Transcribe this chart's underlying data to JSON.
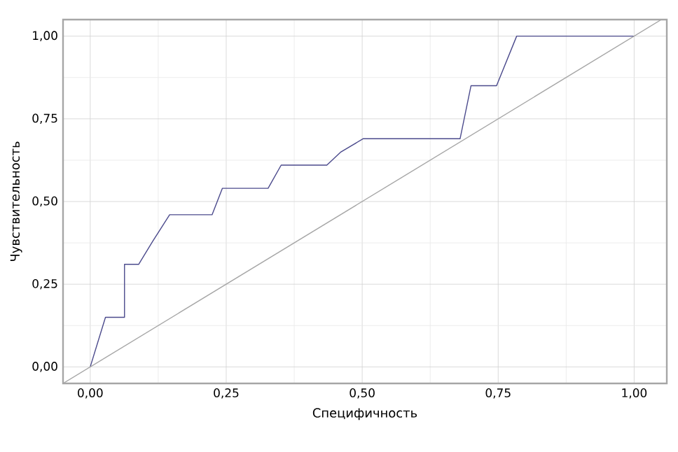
{
  "chart_data": {
    "type": "line",
    "xlabel": "Специфичность",
    "ylabel": "Чувствительность",
    "xlim": [
      -0.05,
      1.06
    ],
    "ylim": [
      -0.05,
      1.05
    ],
    "xticks": [
      {
        "value": 0,
        "label": "0,00"
      },
      {
        "value": 0.25,
        "label": "0,25"
      },
      {
        "value": 0.5,
        "label": "0,50"
      },
      {
        "value": 0.75,
        "label": "0,75"
      },
      {
        "value": 1,
        "label": "1,00"
      }
    ],
    "yticks": [
      {
        "value": 0,
        "label": "0,00"
      },
      {
        "value": 0.25,
        "label": "0,25"
      },
      {
        "value": 0.5,
        "label": "0,50"
      },
      {
        "value": 0.75,
        "label": "0,75"
      },
      {
        "value": 1,
        "label": "1,00"
      }
    ],
    "grid": true,
    "marker": "none",
    "line_style": "solid",
    "series": [
      {
        "color": "#4b4a8c",
        "x": [
          0,
          0.028,
          0.063,
          0.063,
          0.089,
          0.115,
          0.146,
          0.224,
          0.243,
          0.327,
          0.351,
          0.435,
          0.461,
          0.502,
          0.68,
          0.7,
          0.747,
          0.784,
          1.0
        ],
        "values": [
          0,
          0.15,
          0.15,
          0.31,
          0.31,
          0.38,
          0.46,
          0.46,
          0.54,
          0.54,
          0.61,
          0.61,
          0.65,
          0.69,
          0.69,
          0.85,
          0.85,
          1.0,
          1.0
        ]
      },
      {
        "color": "#a6a6a6",
        "x": [
          -0.05,
          1.05
        ],
        "values": [
          -0.05,
          1.05
        ]
      }
    ]
  }
}
